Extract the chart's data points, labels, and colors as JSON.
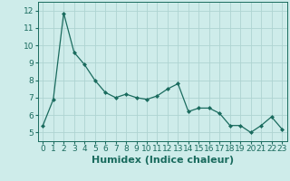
{
  "x": [
    0,
    1,
    2,
    3,
    4,
    5,
    6,
    7,
    8,
    9,
    10,
    11,
    12,
    13,
    14,
    15,
    16,
    17,
    18,
    19,
    20,
    21,
    22,
    23
  ],
  "y": [
    5.4,
    6.9,
    11.85,
    9.6,
    8.9,
    8.0,
    7.3,
    7.0,
    7.2,
    7.0,
    6.9,
    7.1,
    7.5,
    7.8,
    6.2,
    6.4,
    6.4,
    6.1,
    5.4,
    5.4,
    5.0,
    5.4,
    5.9,
    5.2
  ],
  "line_color": "#1a6b5e",
  "marker": "D",
  "marker_size": 2,
  "bg_color": "#ceecea",
  "grid_color": "#aed4d1",
  "xlabel": "Humidex (Indice chaleur)",
  "xlabel_fontsize": 8,
  "ylim": [
    4.5,
    12.5
  ],
  "xlim": [
    -0.5,
    23.5
  ],
  "yticks": [
    5,
    6,
    7,
    8,
    9,
    10,
    11,
    12
  ],
  "xticks": [
    0,
    1,
    2,
    3,
    4,
    5,
    6,
    7,
    8,
    9,
    10,
    11,
    12,
    13,
    14,
    15,
    16,
    17,
    18,
    19,
    20,
    21,
    22,
    23
  ],
  "tick_fontsize": 6.5
}
